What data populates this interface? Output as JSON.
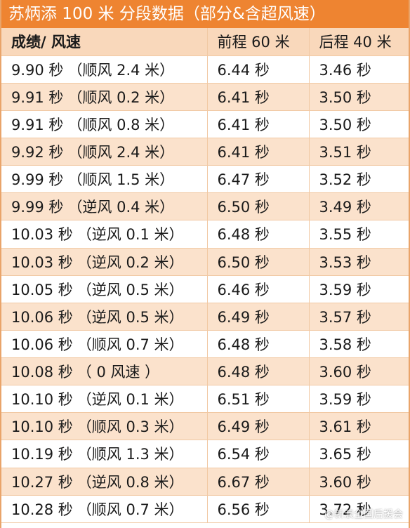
{
  "title": "苏炳添 100 米 分段数据（部分&含超风速）",
  "headers": {
    "col1": "成绩/ 风速",
    "col2": "前程 60 米",
    "col3": "后程 40 米"
  },
  "rows": [
    {
      "time": "9.90 秒",
      "wind": "（顺风 2.4 米）",
      "first60": "6.44 秒",
      "last40": "3.46 秒"
    },
    {
      "time": "9.91 秒",
      "wind": "（顺风 0.2 米）",
      "first60": "6.41 秒",
      "last40": "3.50 秒"
    },
    {
      "time": "9.91 秒",
      "wind": "（顺风 0.8 米）",
      "first60": "6.41 秒",
      "last40": "3.50 秒"
    },
    {
      "time": "9.92 秒",
      "wind": "（顺风 2.4 米）",
      "first60": "6.41 秒",
      "last40": "3.51 秒"
    },
    {
      "time": "9.99 秒",
      "wind": "（顺风 1.5 米）",
      "first60": "6.47 秒",
      "last40": "3.52 秒"
    },
    {
      "time": "9.99 秒",
      "wind": "（逆风 0.4 米）",
      "first60": "6.50 秒",
      "last40": "3.49 秒"
    },
    {
      "time": "10.03 秒",
      "wind": "（逆风 0.1 米）",
      "first60": "6.48 秒",
      "last40": "3.55 秒"
    },
    {
      "time": "10.03 秒",
      "wind": "（逆风 0.2 米）",
      "first60": "6.50 秒",
      "last40": "3.53 秒"
    },
    {
      "time": "10.05 秒",
      "wind": "（逆风 0.5 米）",
      "first60": "6.46 秒",
      "last40": "3.59 秒"
    },
    {
      "time": "10.06 秒",
      "wind": "（逆风 0.5 米）",
      "first60": "6.49 秒",
      "last40": "3.57 秒"
    },
    {
      "time": "10.06 秒",
      "wind": "（顺风 0.7 米）",
      "first60": "6.48 秒",
      "last40": "3.58 秒"
    },
    {
      "time": "10.08 秒",
      "wind": "（ 0 风速 ）",
      "first60": "6.48 秒",
      "last40": "3.60 秒"
    },
    {
      "time": "10.10 秒",
      "wind": "（逆风 0.1 米）",
      "first60": "6.51 秒",
      "last40": "3.59 秒"
    },
    {
      "time": "10.10 秒",
      "wind": "（顺风 0.3 米）",
      "first60": "6.49 秒",
      "last40": "3.61 秒"
    },
    {
      "time": "10.19 秒",
      "wind": "（顺风 1.3 米）",
      "first60": "6.54 秒",
      "last40": "3.65 秒"
    },
    {
      "time": "10.27 秒",
      "wind": "（逆风 0.8 米）",
      "first60": "6.67 秒",
      "last40": "3.60 秒"
    },
    {
      "time": "10.28 秒",
      "wind": "（顺风 0.7 米）",
      "first60": "6.56 秒",
      "last40": "3.72 秒"
    }
  ],
  "watermark": "@新浪全国后援会",
  "colors": {
    "title_bg": "#ee8431",
    "header_bg": "#f9d8bb",
    "stripe_bg": "#fbe2cc",
    "grid": "#f1c9a4"
  }
}
